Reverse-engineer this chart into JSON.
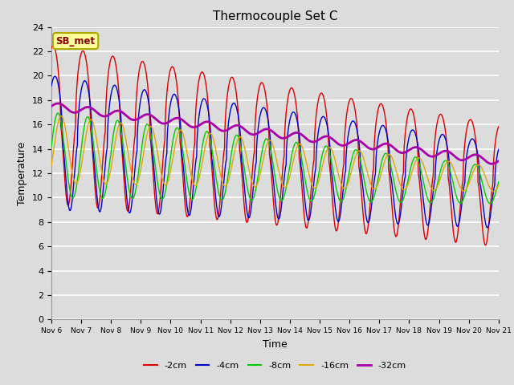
{
  "title": "Thermocouple Set C",
  "xlabel": "Time",
  "ylabel": "Temperature",
  "xlim": [
    0,
    15
  ],
  "ylim": [
    0,
    24
  ],
  "yticks": [
    0,
    2,
    4,
    6,
    8,
    10,
    12,
    14,
    16,
    18,
    20,
    22,
    24
  ],
  "xtick_labels": [
    "Nov 6",
    "Nov 7",
    "Nov 8",
    "Nov 9",
    "Nov 10",
    "Nov 11",
    "Nov 12",
    "Nov 13",
    "Nov 14",
    "Nov 15",
    "Nov 16",
    "Nov 17",
    "Nov 18",
    "Nov 19",
    "Nov 20",
    "Nov 21"
  ],
  "legend_labels": [
    "-2cm",
    "-4cm",
    "-8cm",
    "-16cm",
    "-32cm"
  ],
  "line_colors": [
    "#dd0000",
    "#0000cc",
    "#00cc00",
    "#ddaa00",
    "#aa00aa"
  ],
  "annotation_text": "SB_met",
  "annotation_bg": "#ffff99",
  "annotation_border": "#aaaa00",
  "plot_bg": "#dcdcdc",
  "fig_bg": "#dcdcdc"
}
